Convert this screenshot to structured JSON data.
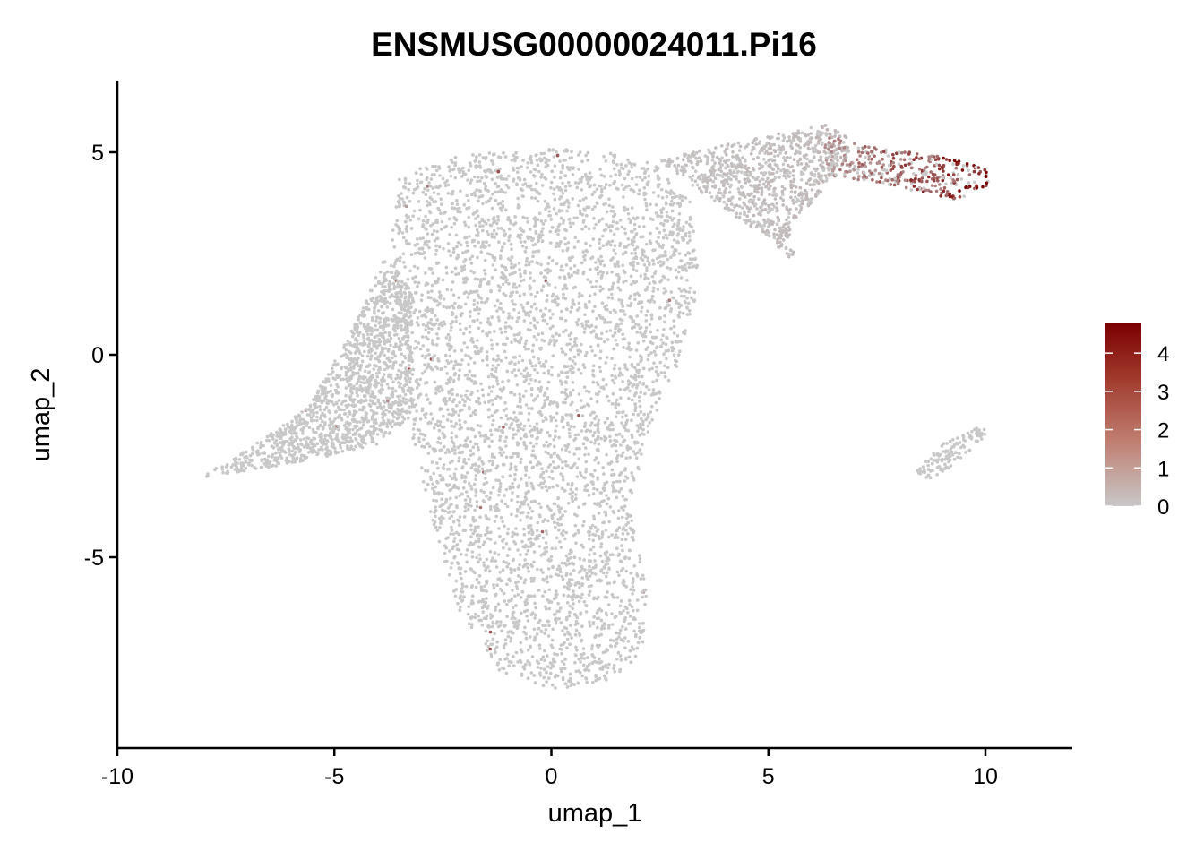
{
  "chart_data": {
    "type": "scatter",
    "title": "ENSMUSG00000024011.Pi16",
    "xlabel": "umap_1",
    "ylabel": "umap_2",
    "xlim": [
      -10,
      12
    ],
    "ylim": [
      -9.7,
      6.7
    ],
    "x_ticks": [
      -10,
      -5,
      0,
      5,
      10
    ],
    "y_ticks": [
      -5,
      0,
      5
    ],
    "grid": false,
    "color_scale": {
      "min": 0,
      "max": 4.8,
      "ticks": [
        0,
        1,
        2,
        3,
        4
      ],
      "low_color": "#c8c8c8",
      "high_color": "#7a0000",
      "legend_position": "right"
    },
    "regions": [
      {
        "description": "main cluster body",
        "points": [
          [
            -3.5,
            4.5
          ],
          [
            -1.8,
            5.0
          ],
          [
            0,
            5.1
          ],
          [
            2.2,
            4.9
          ],
          [
            3.2,
            3.8
          ],
          [
            3.4,
            1.8
          ],
          [
            3.0,
            0.0
          ],
          [
            2.2,
            -2.0
          ],
          [
            1.8,
            -3.8
          ],
          [
            2.2,
            -5.8
          ],
          [
            2.1,
            -7.3
          ],
          [
            1.5,
            -8.0
          ],
          [
            0.0,
            -8.3
          ],
          [
            -1.2,
            -7.8
          ],
          [
            -2.2,
            -6.2
          ],
          [
            -3.2,
            -2.2
          ],
          [
            -3.3,
            0.2
          ],
          [
            -3.7,
            2.6
          ]
        ],
        "expression": 0
      },
      {
        "description": "left arm",
        "points": [
          [
            -3.8,
            2.5
          ],
          [
            -4.6,
            0.6
          ],
          [
            -5.6,
            -1.3
          ],
          [
            -6.8,
            -2.2
          ],
          [
            -8.2,
            -3.1
          ],
          [
            -7.2,
            -2.9
          ],
          [
            -5.5,
            -2.6
          ],
          [
            -4.0,
            -2.2
          ],
          [
            -3.2,
            -1.5
          ],
          [
            -3.2,
            1.5
          ]
        ],
        "expression": 0
      },
      {
        "description": "upper bridge",
        "points": [
          [
            2.5,
            4.8
          ],
          [
            4.0,
            5.2
          ],
          [
            6.4,
            5.7
          ],
          [
            7.0,
            5.2
          ],
          [
            6.2,
            4.0
          ],
          [
            5.5,
            3.2
          ],
          [
            5.6,
            2.3
          ],
          [
            4.8,
            3.0
          ],
          [
            3.6,
            3.9
          ]
        ],
        "expression": 0.3
      },
      {
        "description": "right tip high expression",
        "points": [
          [
            6.3,
            5.4
          ],
          [
            7.6,
            5.1
          ],
          [
            9.0,
            4.9
          ],
          [
            10.0,
            4.6
          ],
          [
            10.1,
            4.2
          ],
          [
            9.4,
            3.8
          ],
          [
            8.6,
            4.0
          ],
          [
            7.3,
            4.3
          ],
          [
            6.3,
            4.4
          ]
        ],
        "expression": 3.0
      },
      {
        "description": "small outlier cluster",
        "points": [
          [
            8.4,
            -2.9
          ],
          [
            9.0,
            -2.2
          ],
          [
            10.0,
            -1.7
          ],
          [
            10.0,
            -2.0
          ],
          [
            9.3,
            -2.7
          ],
          [
            8.7,
            -3.1
          ]
        ],
        "expression": 0
      }
    ]
  }
}
